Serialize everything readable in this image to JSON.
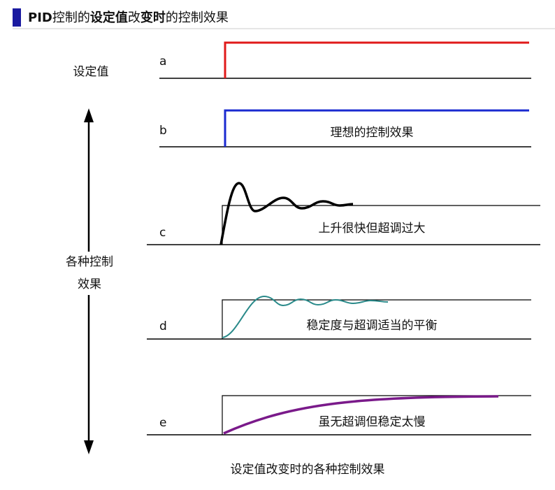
{
  "header": {
    "title_parts": [
      "PID",
      "控制的",
      "设定值",
      "改",
      "变时",
      "的控制效果"
    ]
  },
  "left_labels": {
    "setpoint": "设定值",
    "effects_line1": "各种控制",
    "effects_line2": "效果"
  },
  "rows": [
    {
      "letter": "a"
    },
    {
      "letter": "b",
      "label": "理想的控制效果"
    },
    {
      "letter": "c",
      "label": "上升很快但超调过大"
    },
    {
      "letter": "d",
      "label": "稳定度与超调适当的平衡"
    },
    {
      "letter": "e",
      "label": "虽无超调但稳定太慢"
    }
  ],
  "caption": "设定值改变时的各种控制效果"
}
